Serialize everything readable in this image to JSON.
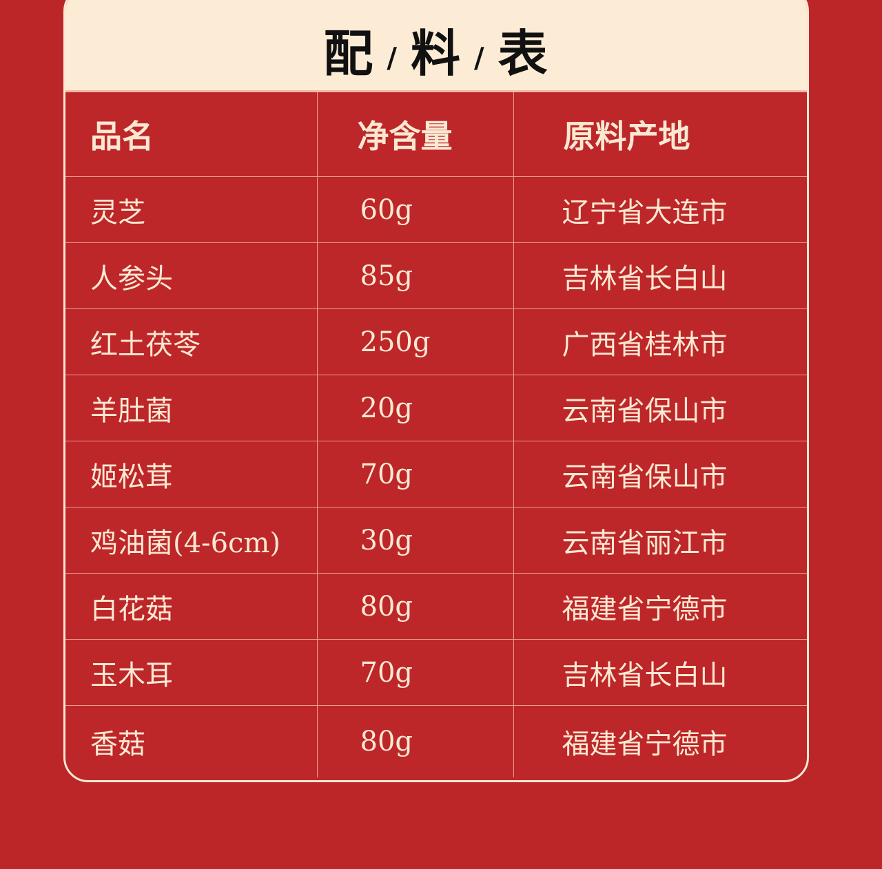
{
  "title": {
    "chars": [
      "配",
      "料",
      "表"
    ],
    "separator": "/"
  },
  "table": {
    "headers": [
      "品名",
      "净含量",
      "原料产地"
    ],
    "rows": [
      [
        "灵芝",
        "60g",
        "辽宁省大连市"
      ],
      [
        "人参头",
        "85g",
        "吉林省长白山"
      ],
      [
        "红土茯苓",
        "250g",
        "广西省桂林市"
      ],
      [
        "羊肚菌",
        "20g",
        "云南省保山市"
      ],
      [
        "姬松茸",
        "70g",
        "云南省保山市"
      ],
      [
        "鸡油菌(4-6cm)",
        "30g",
        "云南省丽江市"
      ],
      [
        "白花菇",
        "80g",
        "福建省宁德市"
      ],
      [
        "玉木耳",
        "70g",
        "吉林省长白山"
      ],
      [
        "香菇",
        "80g",
        "福建省宁德市"
      ]
    ]
  },
  "colors": {
    "background": "#bc2629",
    "header_bg": "#fcecd6",
    "text": "#fbe8d3",
    "title": "#111111"
  }
}
